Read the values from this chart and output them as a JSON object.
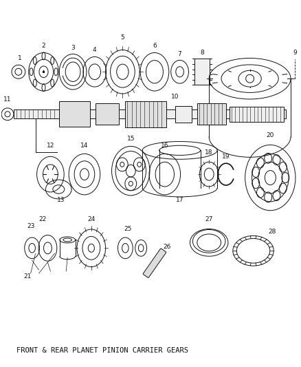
{
  "title": "FRONT & REAR PLANET PINION CARRIER GEARS",
  "bg": "#ffffff",
  "lc": "#111111",
  "fig_w": 4.38,
  "fig_h": 5.33,
  "dpi": 100
}
